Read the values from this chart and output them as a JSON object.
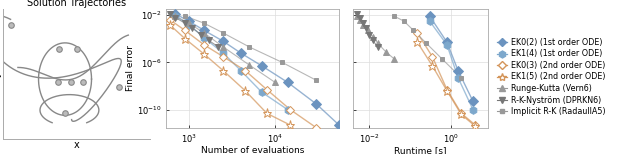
{
  "fig_width": 6.4,
  "fig_height": 1.54,
  "dpi": 100,
  "panel1_title": "Solution Trajectories",
  "panel1_xlabel": "x",
  "panel1_ylabel": "y",
  "panel2_xlabel": "Number of evaluations",
  "panel2_ylabel": "Final error",
  "panel2_xlim": [
    550,
    55000
  ],
  "panel2_ylim": [
    3e-12,
    0.03
  ],
  "panel2_xticks": [
    1000,
    10000
  ],
  "panel3_xlabel": "Runtime [s]",
  "panel3_xlim": [
    0.004,
    8
  ],
  "panel3_ylim": [
    3e-12,
    0.03
  ],
  "panel3_xticks": [
    0.01,
    1
  ],
  "c_ek02": "#6b93bf",
  "c_ek14": "#7da8cc",
  "c_ek03": "#d4955a",
  "c_ek15": "#d4955a",
  "c_rk": "#999999",
  "c_rkn": "#777777",
  "c_irk": "#999999",
  "legend_labels": [
    "EK0(2) (1st order ODE)",
    "EK1(4) (1st order ODE)",
    "EK0(3) (2nd order ODE)",
    "EK1(5) (2nd order ODE)",
    "Runge-Kutta (Vern6)",
    "R-K-Nyström (DPRKN6)",
    "Implicit R-K (RadauIIA5)"
  ],
  "ek02_evals": [
    700,
    1000,
    1500,
    2500,
    4000,
    7000,
    14000,
    30000,
    55000
  ],
  "ek02_errors": [
    0.012,
    0.003,
    0.0005,
    6e-05,
    6e-06,
    5e-07,
    2e-08,
    3e-10,
    5e-12
  ],
  "ek14_evals": [
    700,
    1000,
    1500,
    2500,
    4000,
    7000,
    14000
  ],
  "ek14_errors": [
    0.008,
    0.0015,
    0.00012,
    6e-06,
    2e-07,
    3e-09,
    1e-10
  ],
  "ek03_evals": [
    600,
    900,
    1500,
    2500,
    4500,
    8000,
    15000,
    30000
  ],
  "ek03_errors": [
    0.004,
    0.0005,
    3e-05,
    3e-06,
    2e-07,
    5e-09,
    1e-10,
    3e-12
  ],
  "ek15_evals": [
    600,
    900,
    1500,
    2500,
    4500,
    8000,
    15000
  ],
  "ek15_errors": [
    0.0015,
    0.0001,
    5e-06,
    2e-07,
    4e-09,
    5e-11,
    5e-12
  ],
  "rk_evals": [
    700,
    1000,
    1500,
    2500,
    5000,
    10000
  ],
  "rk_errors": [
    0.008,
    0.002,
    0.0003,
    2e-05,
    6e-07,
    2e-08
  ],
  "rkn_evals": [
    600,
    700,
    900,
    1100,
    1400,
    1700,
    2200
  ],
  "rkn_errors": [
    0.012,
    0.006,
    0.002,
    0.0008,
    0.0002,
    7e-05,
    2e-05
  ],
  "irk_evals": [
    900,
    1500,
    2500,
    5000,
    12000,
    30000
  ],
  "irk_errors": [
    0.008,
    0.002,
    0.0003,
    2e-05,
    1e-06,
    3e-08
  ],
  "ek02_rt": [
    0.3,
    0.8,
    1.5,
    3.5
  ],
  "ek02_rt_errors": [
    0.008,
    5e-05,
    2e-07,
    5e-10
  ],
  "ek14_rt": [
    0.3,
    0.8,
    1.5,
    3.5
  ],
  "ek14_rt_errors": [
    0.003,
    3e-05,
    5e-08,
    1e-10
  ],
  "ek03_rt": [
    0.15,
    0.35,
    0.8,
    1.8,
    4.0
  ],
  "ek03_rt_errors": [
    0.0003,
    3e-06,
    5e-09,
    5e-11,
    5e-12
  ],
  "ek15_rt": [
    0.15,
    0.35,
    0.8,
    1.8,
    4.0
  ],
  "ek15_rt_errors": [
    5e-05,
    5e-07,
    4e-09,
    4e-11,
    4e-12
  ],
  "rk_rt": [
    0.005,
    0.006,
    0.007,
    0.009,
    0.012,
    0.016,
    0.025,
    0.04
  ],
  "rk_rt_errors": [
    0.008,
    0.004,
    0.0015,
    0.0005,
    0.00015,
    4e-05,
    8e-06,
    2e-06
  ],
  "rkn_rt": [
    0.005,
    0.006,
    0.007,
    0.008,
    0.01,
    0.012,
    0.016
  ],
  "rkn_rt_errors": [
    0.012,
    0.006,
    0.002,
    0.0008,
    0.0002,
    7e-05,
    2e-05
  ],
  "irk_rt": [
    0.04,
    0.07,
    0.12,
    0.25,
    0.6,
    1.8
  ],
  "irk_rt_errors": [
    0.008,
    0.003,
    0.0005,
    4e-05,
    2e-06,
    5e-08
  ]
}
